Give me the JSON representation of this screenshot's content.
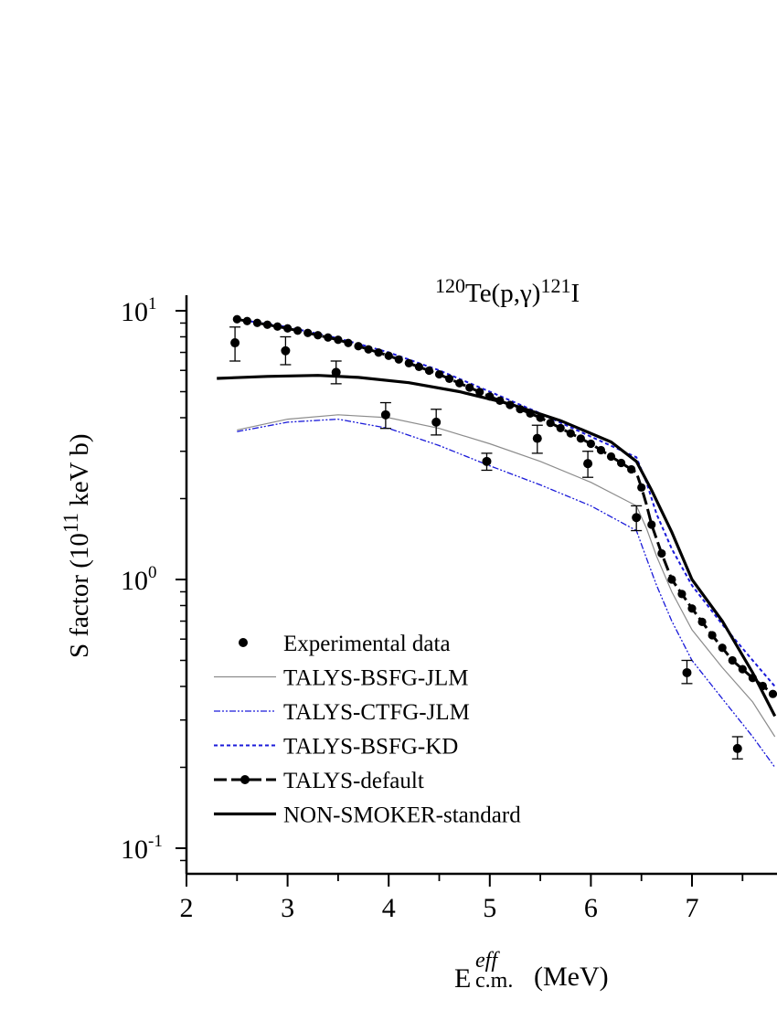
{
  "chart_data": {
    "type": "scatter",
    "title": {
      "sup1": "120",
      "base1": "Te(p,γ)",
      "sup2": "121",
      "base2": "I"
    },
    "ylabel": {
      "prefix": "S factor (10",
      "sup": "11",
      "suffix": " keV b)"
    },
    "xlabel": {
      "base": "E",
      "sup": "eff",
      "sub": "c.m.",
      "suffix": " (MeV)"
    },
    "x_ticks": [
      "2",
      "3",
      "4",
      "5",
      "6",
      "7"
    ],
    "y_ticks": [
      {
        "base": "10",
        "exp": "1"
      },
      {
        "base": "10",
        "exp": "0"
      },
      {
        "base": "10",
        "exp": "-1"
      }
    ],
    "xlim": [
      2,
      7.82
    ],
    "ylim_log10": [
      -1.1,
      1.03
    ],
    "scale": {
      "y": "log"
    },
    "legend": {
      "position": "bottom-left",
      "items": [
        {
          "key": "experimental",
          "label": "Experimental data"
        },
        {
          "key": "bsfg_jlm",
          "label": "TALYS-BSFG-JLM"
        },
        {
          "key": "ctfg_jlm",
          "label": "TALYS-CTFG-JLM"
        },
        {
          "key": "bsfg_kd",
          "label": "TALYS-BSFG-KD"
        },
        {
          "key": "default",
          "label": "TALYS-default"
        },
        {
          "key": "nonsmoker",
          "label": "NON-SMOKER-standard"
        }
      ]
    },
    "colors": {
      "black": "#000000",
      "gray": "#8c8c8c",
      "blue": "#1a1ad9"
    },
    "series": [
      {
        "key": "bsfg_jlm",
        "style": "thin-gray-solid",
        "x": [
          2.5,
          3.0,
          3.5,
          4.0,
          4.5,
          5.0,
          5.5,
          6.0,
          6.45,
          6.55,
          6.65,
          6.8,
          7.0,
          7.3,
          7.6,
          7.82
        ],
        "y": [
          3.6,
          3.95,
          4.1,
          4.0,
          3.65,
          3.2,
          2.75,
          2.3,
          1.88,
          1.55,
          1.22,
          0.9,
          0.65,
          0.47,
          0.35,
          0.26
        ]
      },
      {
        "key": "ctfg_jlm",
        "style": "blue-dashdot",
        "x": [
          2.5,
          3.0,
          3.5,
          4.0,
          4.5,
          5.0,
          5.5,
          6.0,
          6.45,
          6.55,
          6.65,
          6.8,
          7.0,
          7.3,
          7.6,
          7.82
        ],
        "y": [
          3.55,
          3.85,
          3.95,
          3.65,
          3.15,
          2.65,
          2.25,
          1.88,
          1.52,
          1.2,
          0.95,
          0.7,
          0.5,
          0.36,
          0.26,
          0.2
        ]
      },
      {
        "key": "bsfg_kd",
        "style": "blue-dotted",
        "x": [
          2.5,
          3.0,
          3.5,
          4.0,
          4.5,
          5.0,
          5.5,
          6.0,
          6.45,
          6.55,
          6.65,
          6.8,
          7.0,
          7.3,
          7.6,
          7.82
        ],
        "y": [
          9.3,
          8.7,
          7.9,
          7.0,
          6.0,
          5.0,
          4.15,
          3.4,
          2.85,
          2.3,
          1.75,
          1.3,
          0.95,
          0.68,
          0.5,
          0.4
        ]
      },
      {
        "key": "default",
        "style": "black-dashed-dots",
        "x": [
          2.5,
          3.0,
          3.5,
          4.0,
          4.5,
          5.0,
          5.5,
          6.0,
          6.45,
          6.5,
          6.55,
          6.6,
          6.7,
          6.8,
          7.0,
          7.2,
          7.4,
          7.6,
          7.82
        ],
        "y": [
          9.3,
          8.6,
          7.8,
          6.8,
          5.8,
          4.8,
          4.0,
          3.2,
          2.5,
          2.2,
          1.9,
          1.6,
          1.25,
          1.0,
          0.78,
          0.62,
          0.5,
          0.43,
          0.37
        ]
      },
      {
        "key": "nonsmoker",
        "style": "black-thick-solid",
        "x": [
          2.3,
          2.8,
          3.3,
          3.7,
          4.2,
          4.7,
          5.2,
          5.7,
          6.2,
          6.45,
          6.6,
          6.8,
          7.0,
          7.3,
          7.6,
          7.82
        ],
        "y": [
          5.6,
          5.7,
          5.75,
          5.65,
          5.4,
          5.0,
          4.5,
          3.9,
          3.25,
          2.75,
          2.15,
          1.5,
          1.0,
          0.7,
          0.45,
          0.31
        ]
      }
    ],
    "experimental": {
      "x": [
        2.48,
        2.98,
        3.48,
        3.97,
        4.47,
        4.97,
        5.47,
        5.97,
        6.45,
        6.95,
        7.45
      ],
      "y": [
        7.6,
        7.1,
        5.9,
        4.1,
        3.85,
        2.75,
        3.35,
        2.7,
        1.7,
        0.45,
        0.235
      ],
      "err_low": [
        6.5,
        6.3,
        5.35,
        3.65,
        3.45,
        2.55,
        2.95,
        2.4,
        1.52,
        0.41,
        0.215
      ],
      "err_high": [
        8.7,
        8.0,
        6.5,
        4.55,
        4.3,
        2.95,
        3.75,
        3.0,
        1.88,
        0.5,
        0.26
      ]
    }
  }
}
